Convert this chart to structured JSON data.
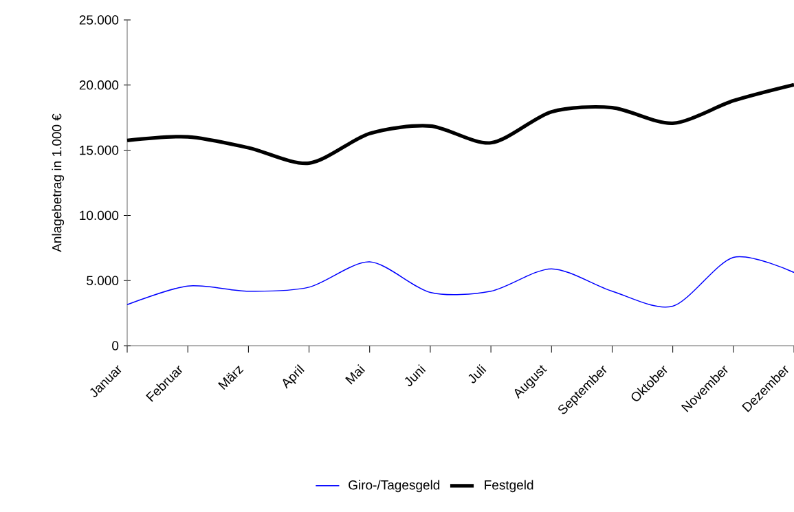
{
  "chart_data": {
    "type": "line",
    "ylabel": "Anlagebetrag in 1.000 €",
    "categories": [
      "Januar",
      "Februar",
      "März",
      "April",
      "Mai",
      "Juni",
      "Juli",
      "August",
      "September",
      "Oktober",
      "November",
      "Dezember"
    ],
    "series": [
      {
        "name": "Giro-/Tagesgeld",
        "color": "#0000ff",
        "values": [
          3150,
          4580,
          4180,
          4490,
          6430,
          4090,
          4180,
          5900,
          4180,
          3030,
          6780,
          5620
        ]
      },
      {
        "name": "Festgeld",
        "color": "#000000",
        "values": [
          15750,
          16030,
          15190,
          14010,
          16280,
          16860,
          15570,
          17950,
          18270,
          17070,
          18800,
          20030
        ]
      }
    ],
    "ylim": [
      0,
      25000
    ],
    "yticks": [
      {
        "value": 0,
        "label": "0"
      },
      {
        "value": 5000,
        "label": "5.000"
      },
      {
        "value": 10000,
        "label": "10.000"
      },
      {
        "value": 15000,
        "label": "15.000"
      },
      {
        "value": 20000,
        "label": "20.000"
      },
      {
        "value": 25000,
        "label": "25.000"
      }
    ],
    "legend": "bottom"
  }
}
